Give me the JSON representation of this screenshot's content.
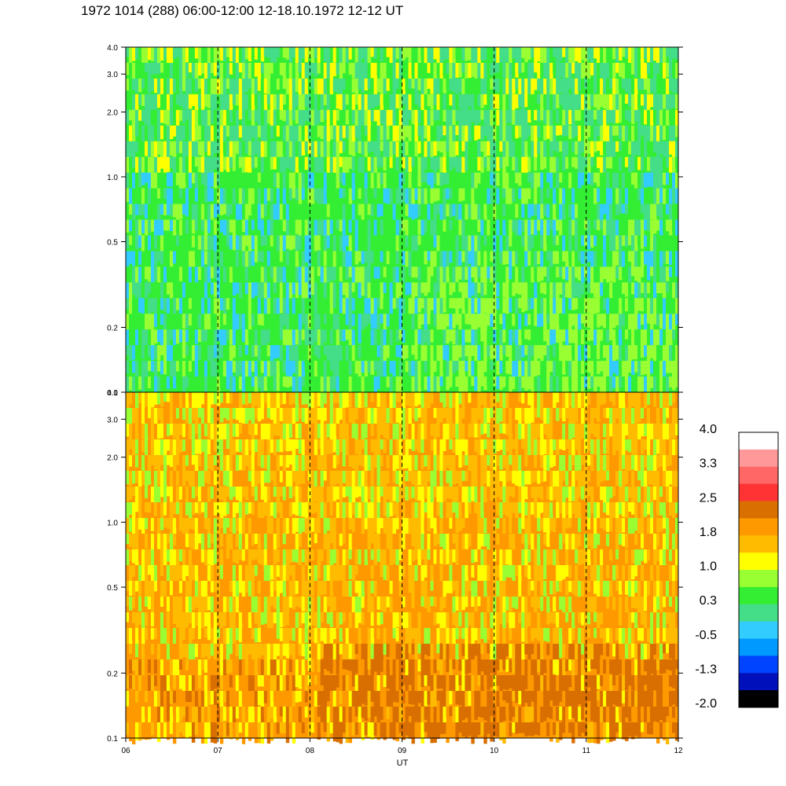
{
  "title": "1972 1014 (288) 06:00-12:00 12-18.10.1972  12-12 UT",
  "chart_data": [
    {
      "type": "heatmap",
      "panel": "upper",
      "x": [
        "06",
        "07",
        "08",
        "09",
        "10",
        "11",
        "12"
      ],
      "y_ticks": [
        "0.1",
        "0.2",
        "0.5",
        "1.0",
        "2.0",
        "3.0",
        "4.0"
      ],
      "ylim": [
        0.1,
        4.0
      ],
      "y_scale": "log",
      "dominant_values": [
        0.3,
        1.0
      ],
      "grid": "dashed vertical lines at each hour"
    },
    {
      "type": "heatmap",
      "panel": "lower",
      "x": [
        "06",
        "07",
        "08",
        "09",
        "10",
        "11",
        "12"
      ],
      "y_ticks": [
        "0.1",
        "0.2",
        "0.5",
        "1.0",
        "2.0",
        "3.0",
        "4.0"
      ],
      "ylim": [
        0.1,
        4.0
      ],
      "y_scale": "log",
      "dominant_values": [
        1.0,
        2.5
      ],
      "grid": "dashed vertical lines at each hour"
    }
  ],
  "x_axis_label": "UT",
  "colorbar": {
    "labels": [
      "4.0",
      "3.3",
      "2.5",
      "1.8",
      "1.0",
      "0.3",
      "-0.5",
      "-1.3",
      "-2.0"
    ],
    "colors": [
      "#ffffff",
      "#ff9999",
      "#ff6666",
      "#ff3333",
      "#d96f00",
      "#ff9900",
      "#ffbb00",
      "#ffff00",
      "#99ff33",
      "#33ee33",
      "#44dd88",
      "#33ccff",
      "#0099ff",
      "#0044ff",
      "#0011bb",
      "#000000"
    ]
  }
}
